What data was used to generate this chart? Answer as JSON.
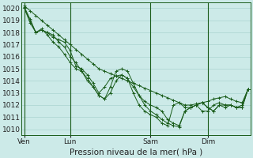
{
  "title": "Pression niveau de la mer( hPa )",
  "bg_color": "#cceae8",
  "grid_color": "#aad4d0",
  "line_color": "#1a5c1a",
  "ylim": [
    1009.5,
    1020.5
  ],
  "yticks": [
    1010,
    1011,
    1012,
    1013,
    1014,
    1015,
    1016,
    1017,
    1018,
    1019,
    1020
  ],
  "xtick_labels": [
    "Ven",
    "Lun",
    "Sam",
    "Dim"
  ],
  "xtick_positions": [
    0,
    8,
    22,
    32
  ],
  "vline_positions": [
    0,
    8,
    22,
    32
  ],
  "total_points": 40,
  "series": [
    [
      1020.2,
      1019.8,
      1019.4,
      1019.0,
      1018.6,
      1018.2,
      1017.8,
      1017.4,
      1017.0,
      1016.6,
      1016.2,
      1015.8,
      1015.4,
      1015.0,
      1014.8,
      1014.6,
      1014.4,
      1014.2,
      1014.0,
      1013.8,
      1013.6,
      1013.4,
      1013.2,
      1013.0,
      1012.8,
      1012.6,
      1012.4,
      1012.2,
      1012.0,
      1012.0,
      1012.1,
      1012.2,
      1012.3,
      1012.5,
      1012.6,
      1012.7,
      1012.5,
      1012.3,
      1012.2,
      1013.3
    ],
    [
      1020.1,
      1019.1,
      1018.0,
      1018.2,
      1018.0,
      1017.6,
      1017.4,
      1017.2,
      1016.5,
      1015.2,
      1015.0,
      1014.5,
      1013.8,
      1013.0,
      1013.5,
      1014.2,
      1014.4,
      1014.5,
      1014.2,
      1013.5,
      1012.8,
      1012.3,
      1012.0,
      1011.8,
      1011.5,
      1010.8,
      1010.5,
      1010.3,
      1011.5,
      1011.8,
      1012.0,
      1012.2,
      1011.8,
      1011.5,
      1012.0,
      1011.8,
      1012.0,
      1011.8,
      1011.8,
      1013.3
    ],
    [
      1020.0,
      1018.8,
      1018.0,
      1018.3,
      1017.8,
      1017.2,
      1016.8,
      1016.2,
      1015.5,
      1015.0,
      1014.8,
      1014.2,
      1013.5,
      1012.8,
      1012.5,
      1013.0,
      1014.0,
      1014.5,
      1014.2,
      1013.0,
      1012.0,
      1011.5,
      1011.2,
      1011.0,
      1010.5,
      1010.3,
      1012.0,
      1012.2,
      1011.8,
      1011.8,
      1012.0,
      1011.5,
      1011.5,
      1012.0,
      1012.2,
      1012.0,
      1012.0,
      1011.8,
      1012.0,
      1013.3
    ],
    [
      1020.0,
      1019.0,
      1018.0,
      1018.2,
      1018.0,
      1017.8,
      1017.2,
      1016.8,
      1016.0,
      1015.5,
      1014.8,
      1014.0,
      1013.5,
      1012.8,
      1012.5,
      1013.5,
      1014.8,
      1015.0,
      1014.8,
      1013.8,
      1012.8,
      1012.0,
      1011.5,
      1011.2,
      1010.8,
      1010.5,
      1010.3,
      1010.2,
      1011.5,
      1011.8,
      1012.0,
      1012.2,
      1011.8,
      1011.5,
      1012.0,
      1012.0,
      1012.0,
      1011.8,
      1011.8,
      1013.3
    ]
  ],
  "marker": "+",
  "marker_size": 3,
  "line_width": 0.7,
  "tick_fontsize": 6.5,
  "xlabel_fontsize": 7.5
}
